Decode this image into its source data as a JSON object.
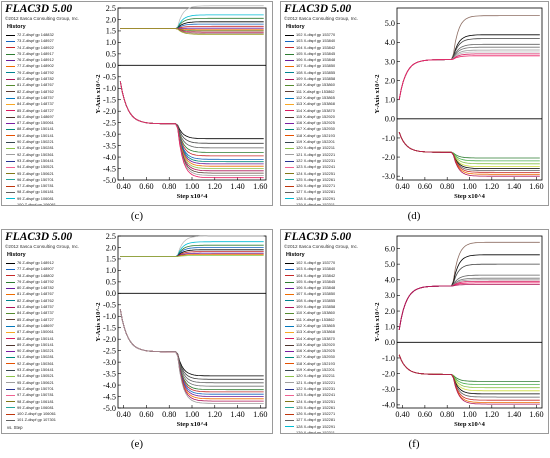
{
  "chart_data": [
    {
      "id": "c",
      "type": "line",
      "caption": "(c)",
      "title": "FLAC3D 5.00",
      "copyright": "©2012 Itasca Consulting Group, Inc.",
      "legend_title": "History",
      "legend": [
        "72 Z-dispf gp 148832",
        "73 Z-dispf gp 148927",
        "74 Z-dispf gp 148922",
        "75 Z-dispf gp 148917",
        "76 Z-dispf gp 148912",
        "77 Z-dispf gp 148902",
        "79 Z-dispf gp 148792",
        "80 Z-dispf gp 148782",
        "81 Z-dispf gp 148767",
        "82 Z-dispf gp 148762",
        "83 Z-dispf gp 148757",
        "84 Z-dispf gp 148737",
        "85 Z-dispf gp 148727",
        "86 Z-dispf gp 148697",
        "87 Z-dispf gp 150061",
        "88 Z-dispf gp 150141",
        "89 Z-dispf gp 150141",
        "90 Z-dispf gp 150221",
        "91 Z-dispf gp 150281",
        "92 Z-dispf gp 150361",
        "93 Z-dispf gp 150441",
        "94 Z-dispf gp 150521",
        "95 Z-dispf gp 150621",
        "96 Z-dispf gp 150701",
        "97 Z-dispf gp 150781",
        "98 Z-dispf gp 106181",
        "99 Z-dispf gp 106081",
        "100 Z-dispf gp 106061",
        "101 Z-dispf gp 107301"
      ],
      "legend_footer": "vs. Step",
      "xlabel": "Step x10^4",
      "ylabel": "Y-Axis x10^-2",
      "x_ticks": [
        "0.40",
        "0.60",
        "0.80",
        "1.00",
        "1.20",
        "1.40",
        "1.60"
      ],
      "x_tick_values": [
        0.4,
        0.6,
        0.8,
        1.0,
        1.2,
        1.4,
        1.6
      ],
      "y_ticks": [
        "2.5",
        "2.0",
        "1.5",
        "1.0",
        "0.5",
        "0.0",
        "-0.5",
        "-1.0",
        "-1.5",
        "-2.0",
        "-2.5",
        "-3.0",
        "-3.5",
        "-4.0",
        "-4.5",
        "-5.0"
      ],
      "y_tick_values": [
        2.5,
        2.0,
        1.5,
        1.0,
        0.5,
        0.0,
        -0.5,
        -1.0,
        -1.5,
        -2.0,
        -2.5,
        -3.0,
        -3.5,
        -4.0,
        -4.5,
        -5.0
      ],
      "xlim": [
        0.35,
        1.65
      ],
      "ylim": [
        -5.0,
        2.5
      ],
      "upper_series": {
        "plateau": 1.6,
        "knee_x": 0.87,
        "end_values": [
          2.6,
          2.2,
          2.05,
          1.9,
          1.8,
          1.7,
          1.62,
          1.55,
          1.5,
          1.45,
          1.4,
          1.35
        ],
        "colors": [
          "#bdbdbd",
          "#00bcd4",
          "#2e7d32",
          "#000000",
          "#1565c0",
          "#c62828",
          "#6a1b9a",
          "#ef6c00",
          "#558b2f",
          "#d81b60",
          "#8d6e63",
          "#9e9d24"
        ]
      },
      "lower_series": {
        "start": -0.7,
        "plateau": -2.55,
        "knee_x": 0.87,
        "end_values": [
          -3.2,
          -3.4,
          -3.6,
          -3.8,
          -3.95,
          -4.1,
          -4.2,
          -4.3,
          -4.4,
          -4.5,
          -4.6,
          -4.7,
          -4.8,
          -4.9
        ],
        "colors": [
          "#000000",
          "#424242",
          "#616161",
          "#2e7d32",
          "#c62828",
          "#1565c0",
          "#00897b",
          "#6a1b9a",
          "#ef6c00",
          "#8bc34a",
          "#ad1457",
          "#5d4037",
          "#9e9e9e",
          "#e91e63"
        ]
      }
    },
    {
      "id": "d",
      "type": "line",
      "caption": "(d)",
      "title": "FLAC3D 5.00",
      "copyright": "©2012 Itasca Consulting Group, Inc.",
      "legend_title": "History",
      "legend": [
        "102 X-dispf gp 153770",
        "103 X-dispf gp 153840",
        "104 X-dispf gp 153842",
        "105 X-dispf gp 153845",
        "106 X-dispf gp 153848",
        "107 X-dispf gp 153850",
        "108 X-dispf gp 153855",
        "109 X-dispf gp 153858",
        "110 X-dispf gp 153860",
        "111 X-dispf gp 153862",
        "112 X-dispf gp 153865",
        "113 X-dispf gp 153868",
        "114 X-dispf gp 153870",
        "115 X-dispf gp 152920",
        "116 X-dispf gp 152925",
        "117 X-dispf gp 152930",
        "118 X-dispf gp 152193",
        "119 X-dispf gp 152201",
        "120 X-dispf gp 152211",
        "121 X-dispf gp 152221",
        "122 X-dispf gp 152231",
        "123 X-dispf gp 152241",
        "124 X-dispf gp 152251",
        "125 X-dispf gp 152261",
        "126 X-dispf gp 152271",
        "127 X-dispf gp 152281",
        "128 X-dispf gp 152291",
        "129 X-dispf gp 152311",
        "130 X-dispf gp 152331",
        "131 X-dispf gp 152471"
      ],
      "legend_footer": "vs. Step",
      "xlabel": "Step x10^4",
      "ylabel": "Y-Axis x10^-2",
      "x_ticks": [
        "0.40",
        "0.60",
        "0.80",
        "1.00",
        "1.20",
        "1.40",
        "1.60"
      ],
      "x_tick_values": [
        0.4,
        0.6,
        0.8,
        1.0,
        1.2,
        1.4,
        1.6
      ],
      "y_ticks": [
        "5.0",
        "4.0",
        "3.0",
        "2.0",
        "1.0",
        "0.0",
        "-1.0",
        "-2.0",
        "-3.0"
      ],
      "y_tick_values": [
        5.0,
        4.0,
        3.0,
        2.0,
        1.0,
        0.0,
        -1.0,
        -2.0,
        -3.0
      ],
      "xlim": [
        0.35,
        1.65
      ],
      "ylim": [
        -3.2,
        5.8
      ],
      "upper_series": {
        "start": 1.0,
        "plateau": 3.1,
        "knee_x": 0.85,
        "end_values": [
          5.4,
          4.4,
          4.2,
          3.9,
          3.75,
          3.6,
          3.5,
          3.4,
          3.3
        ],
        "colors": [
          "#8d6e63",
          "#000000",
          "#424242",
          "#616161",
          "#757575",
          "#9e9e9e",
          "#bdbdbd",
          "#d81b60",
          "#e91e63"
        ]
      },
      "lower_series": {
        "start": -0.7,
        "plateau": -1.75,
        "knee_x": 0.85,
        "end_values": [
          -2.05,
          -2.2,
          -2.35,
          -2.5,
          -2.6,
          -2.7,
          -2.8,
          -2.9,
          -3.0
        ],
        "colors": [
          "#2e7d32",
          "#4caf50",
          "#8bc34a",
          "#cddc39",
          "#000000",
          "#616161",
          "#c62828",
          "#ef6c00",
          "#ad1457"
        ]
      }
    },
    {
      "id": "e",
      "type": "line",
      "caption": "(e)",
      "title": "FLAC3D 5.00",
      "copyright": "©2012 Itasca Consulting Group, Inc.",
      "legend_title": "History",
      "legend": [
        "76 Z-dispf gp 148912",
        "77 Z-dispf gp 148907",
        "78 Z-dispf gp 148802",
        "79 Z-dispf gp 148792",
        "80 Z-dispf gp 148782",
        "81 Z-dispf gp 148767",
        "82 Z-dispf gp 148762",
        "83 Z-dispf gp 148757",
        "84 Z-dispf gp 148737",
        "85 Z-dispf gp 148727",
        "86 Z-dispf gp 148697",
        "87 Z-dispf gp 150061",
        "88 Z-dispf gp 150141",
        "89 Z-dispf gp 150141",
        "90 Z-dispf gp 150221",
        "91 Z-dispf gp 150281",
        "92 Z-dispf gp 150361",
        "93 Z-dispf gp 150441",
        "94 Z-dispf gp 150521",
        "95 Z-dispf gp 150621",
        "96 Z-dispf gp 150701",
        "97 Z-dispf gp 150781",
        "98 Z-dispf gp 106181",
        "99 Z-dispf gp 106081",
        "100 Z-dispf gp 106061",
        "101 Z-dispf gp 107301"
      ],
      "legend_footer": "vs. Step",
      "xlabel": "Step x10^4",
      "ylabel": "Y-Axis x10^-2",
      "x_ticks": [
        "0.40",
        "0.60",
        "0.80",
        "1.00",
        "1.20",
        "1.40",
        "1.60"
      ],
      "x_tick_values": [
        0.4,
        0.6,
        0.8,
        1.0,
        1.2,
        1.4,
        1.6
      ],
      "y_ticks": [
        "2.5",
        "2.0",
        "1.5",
        "1.0",
        "0.5",
        "0.0",
        "-0.5",
        "-1.0",
        "-1.5",
        "-2.0",
        "-2.5",
        "-3.0",
        "-3.5",
        "-4.0",
        "-4.5",
        "-5.0"
      ],
      "y_tick_values": [
        2.5,
        2.0,
        1.5,
        1.0,
        0.5,
        0.0,
        -0.5,
        -1.0,
        -1.5,
        -2.0,
        -2.5,
        -3.0,
        -3.5,
        -4.0,
        -4.5,
        -5.0
      ],
      "xlim": [
        0.35,
        1.65
      ],
      "ylim": [
        -5.0,
        2.5
      ],
      "upper_series": {
        "plateau": 1.6,
        "knee_x": 0.87,
        "end_values": [
          2.5,
          2.25,
          2.1,
          2.0,
          1.9,
          1.82,
          1.75,
          1.7,
          1.65
        ],
        "colors": [
          "#bdbdbd",
          "#00bcd4",
          "#2e7d32",
          "#1565c0",
          "#000000",
          "#c62828",
          "#6a1b9a",
          "#ef6c00",
          "#8bc34a"
        ]
      },
      "lower_series": {
        "start": -0.7,
        "plateau": -2.55,
        "knee_x": 0.87,
        "end_values": [
          -3.6,
          -3.75,
          -3.9,
          -4.05,
          -4.2,
          -4.3,
          -4.4,
          -4.5,
          -4.6,
          -4.7,
          -4.8
        ],
        "colors": [
          "#000000",
          "#424242",
          "#616161",
          "#757575",
          "#2e7d32",
          "#c62828",
          "#1565c0",
          "#6a1b9a",
          "#ef6c00",
          "#ad1457",
          "#9e9e9e"
        ]
      }
    },
    {
      "id": "f",
      "type": "line",
      "caption": "(f)",
      "title": "FLAC3D 5.00",
      "copyright": "©2012 Itasca Consulting Group, Inc.",
      "legend_title": "History",
      "legend": [
        "102 X-dispf gp 153770",
        "103 X-dispf gp 153840",
        "104 X-dispf gp 153842",
        "105 X-dispf gp 153845",
        "106 X-dispf gp 153848",
        "107 X-dispf gp 153850",
        "108 X-dispf gp 153855",
        "109 X-dispf gp 153858",
        "110 X-dispf gp 153860",
        "111 X-dispf gp 153862",
        "112 X-dispf gp 153865",
        "113 X-dispf gp 153868",
        "114 X-dispf gp 153870",
        "115 X-dispf gp 152920",
        "116 X-dispf gp 152925",
        "117 X-dispf gp 152930",
        "118 X-dispf gp 152193",
        "119 X-dispf gp 152201",
        "120 X-dispf gp 152211",
        "121 X-dispf gp 152221",
        "122 X-dispf gp 152231",
        "123 X-dispf gp 152241",
        "124 X-dispf gp 152251",
        "125 X-dispf gp 152261",
        "126 X-dispf gp 152271",
        "127 X-dispf gp 152281",
        "128 X-dispf gp 152291",
        "129 X-dispf gp 152311",
        "130 X-dispf gp 152331",
        "131 X-dispf gp 152471"
      ],
      "legend_footer": "vs. Step",
      "xlabel": "Step x10^4",
      "ylabel": "Y-Axis x10^-2",
      "x_ticks": [
        "0.40",
        "0.60",
        "0.80",
        "1.00",
        "1.20",
        "1.40",
        "1.60"
      ],
      "x_tick_values": [
        0.4,
        0.6,
        0.8,
        1.0,
        1.2,
        1.4,
        1.6
      ],
      "y_ticks": [
        "6.0",
        "5.0",
        "4.0",
        "3.0",
        "2.0",
        "1.0",
        "0.0",
        "-1.0",
        "-2.0",
        "-3.0",
        "-4.0"
      ],
      "y_tick_values": [
        6.0,
        5.0,
        4.0,
        3.0,
        2.0,
        1.0,
        0.0,
        -1.0,
        -2.0,
        -3.0,
        -4.0
      ],
      "xlim": [
        0.35,
        1.65
      ],
      "ylim": [
        -4.2,
        6.8
      ],
      "upper_series": {
        "start": 0.8,
        "plateau": 3.6,
        "knee_x": 0.85,
        "end_values": [
          6.4,
          5.6,
          5.0,
          4.3,
          4.1,
          4.0,
          3.9,
          3.8,
          3.7
        ],
        "colors": [
          "#8d6e63",
          "#000000",
          "#424242",
          "#616161",
          "#757575",
          "#9e9e9e",
          "#d81b60",
          "#e91e63",
          "#ad1457"
        ]
      },
      "lower_series": {
        "start": -0.8,
        "plateau": -2.05,
        "knee_x": 0.85,
        "end_values": [
          -2.5,
          -2.7,
          -2.9,
          -3.1,
          -3.3,
          -3.5,
          -3.7,
          -3.85,
          -3.95
        ],
        "colors": [
          "#2e7d32",
          "#4caf50",
          "#8bc34a",
          "#cddc39",
          "#000000",
          "#616161",
          "#c62828",
          "#ef6c00",
          "#ad1457"
        ]
      }
    }
  ]
}
